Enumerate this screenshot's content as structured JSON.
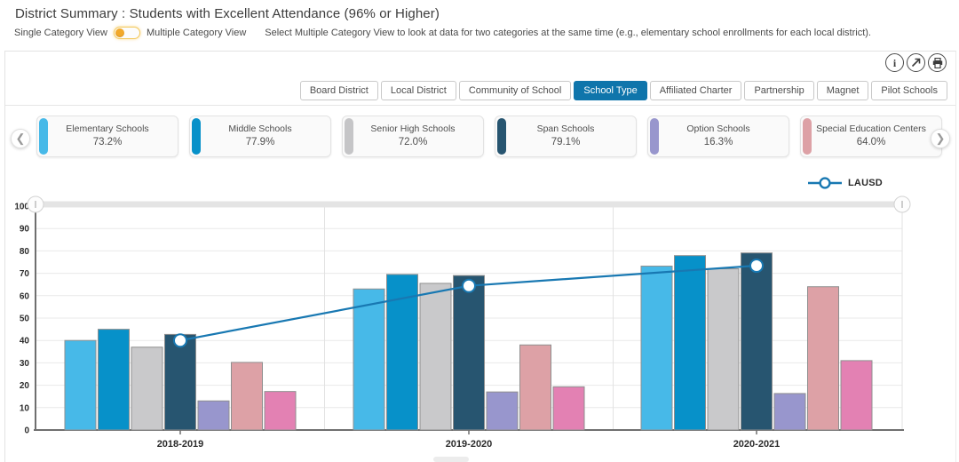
{
  "header": {
    "title": "District Summary : Students with Excellent Attendance (96% or Higher)",
    "toggle": {
      "left_label": "Single Category View",
      "right_label": "Multiple Category View",
      "state": "single",
      "help_text": "Select Multiple Category View to look at data for two categories at the same time (e.g., elementary school enrollments for each local district)."
    }
  },
  "toolbar": {
    "icons": [
      {
        "name": "info-icon",
        "glyph": "i"
      },
      {
        "name": "share-icon",
        "glyph": "arrow-up-right"
      },
      {
        "name": "print-icon",
        "glyph": "printer"
      }
    ]
  },
  "tabs": [
    {
      "label": "Board District",
      "active": false
    },
    {
      "label": "Local District",
      "active": false
    },
    {
      "label": "Community of School",
      "active": false
    },
    {
      "label": "School Type",
      "active": true
    },
    {
      "label": "Affiliated Charter",
      "active": false
    },
    {
      "label": "Partnership",
      "active": false
    },
    {
      "label": "Magnet",
      "active": false
    },
    {
      "label": "Pilot Schools",
      "active": false
    }
  ],
  "carousel": {
    "prev_glyph": "❮",
    "next_glyph": "❯",
    "cards": [
      {
        "label": "Elementary Schools",
        "value": "73.2%",
        "accent_color": "#47b9e8"
      },
      {
        "label": "Middle Schools",
        "value": "77.9%",
        "accent_color": "#0791c9"
      },
      {
        "label": "Senior High Schools",
        "value": "72.0%",
        "accent_color": "#c5c5c7"
      },
      {
        "label": "Span Schools",
        "value": "79.1%",
        "accent_color": "#275570"
      },
      {
        "label": "Option Schools",
        "value": "16.3%",
        "accent_color": "#9896cd"
      },
      {
        "label": "Special Education Centers",
        "value": "64.0%",
        "accent_color": "#dda1a6"
      }
    ]
  },
  "legend": {
    "label": "LAUSD",
    "color": "#1878b2"
  },
  "chart_data": {
    "type": "bar",
    "title": "Students with Excellent Attendance (96% or Higher) by School Type",
    "categories": [
      "2018-2019",
      "2019-2020",
      "2020-2021"
    ],
    "series": [
      {
        "name": "Elementary Schools",
        "color": "#47b9e8",
        "values": [
          40,
          63,
          73.2
        ]
      },
      {
        "name": "Middle Schools",
        "color": "#0791c9",
        "values": [
          45,
          69.5,
          77.9
        ]
      },
      {
        "name": "Senior High Schools",
        "color": "#c9c9cb",
        "values": [
          37,
          65.5,
          72.0
        ]
      },
      {
        "name": "Span Schools",
        "color": "#275570",
        "values": [
          42.7,
          69,
          79.1
        ]
      },
      {
        "name": "Option Schools",
        "color": "#9896cd",
        "values": [
          13,
          17,
          16.3
        ]
      },
      {
        "name": "Special Education Centers",
        "color": "#dda1a6",
        "values": [
          30.2,
          38,
          64.0
        ]
      },
      {
        "name": "",
        "color": "#e381b3",
        "values": [
          17.2,
          19.3,
          31
        ]
      }
    ],
    "line_series": {
      "name": "LAUSD",
      "color": "#1878b2",
      "values": [
        40,
        64.4,
        73.4
      ]
    },
    "xlabel": "",
    "ylabel": "",
    "ylim": [
      0,
      100
    ],
    "ytick_step": 10,
    "grid": true,
    "legend_position": "top-right"
  }
}
